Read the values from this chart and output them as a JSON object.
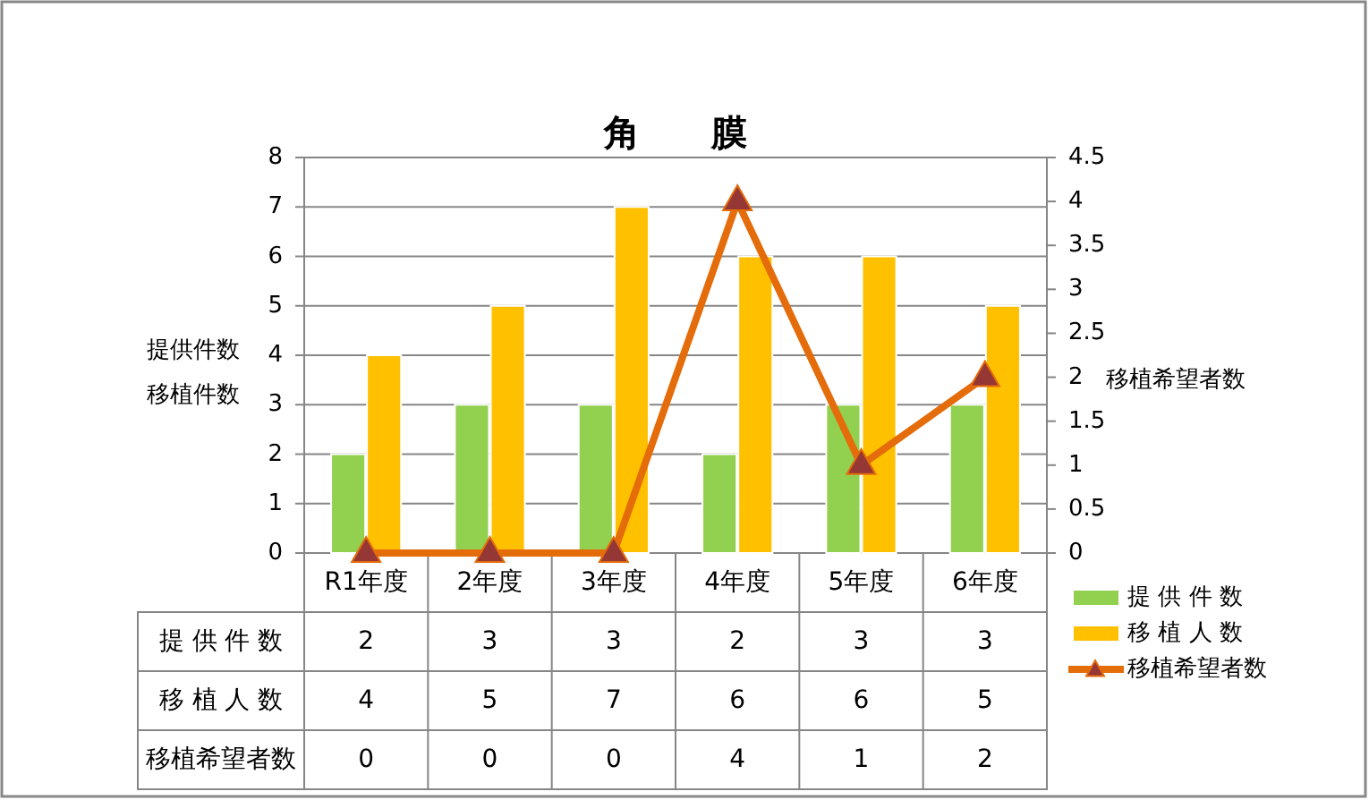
{
  "chart_data": {
    "type": "bar",
    "title": "角　　膜",
    "categories": [
      "R1年度",
      "2年度",
      "3年度",
      "4年度",
      "5年度",
      "6年度"
    ],
    "series": [
      {
        "name": "提 供 件 数",
        "color": "#92d050",
        "values": [
          2,
          3,
          3,
          2,
          3,
          3
        ]
      },
      {
        "name": "移 植 人 数",
        "color": "#ffc000",
        "values": [
          4,
          5,
          7,
          6,
          6,
          5
        ]
      },
      {
        "name": "移植希望者数",
        "type": "line",
        "axis": "y2",
        "color": "#e46c0a",
        "colors": [
          "#953735",
          "#953735",
          "#953735",
          "#953735",
          "#953735",
          "#953735"
        ],
        "values": [
          0,
          0,
          0,
          4,
          1,
          2
        ]
      }
    ],
    "ylabel": "提供件数移植件数",
    "y2label": "移植希望者数",
    "ylim": [
      0,
      8
    ],
    "yticks": [
      0,
      1,
      2,
      3,
      4,
      5,
      6,
      7,
      8
    ],
    "y2lim": [
      0,
      4.5
    ],
    "y2ticks": [
      0,
      0.5,
      1,
      1.5,
      2,
      2.5,
      3,
      3.5,
      4,
      4.5
    ],
    "grid": "y",
    "legend": "bottom right",
    "marker": "triangle",
    "data_labels": true
  }
}
